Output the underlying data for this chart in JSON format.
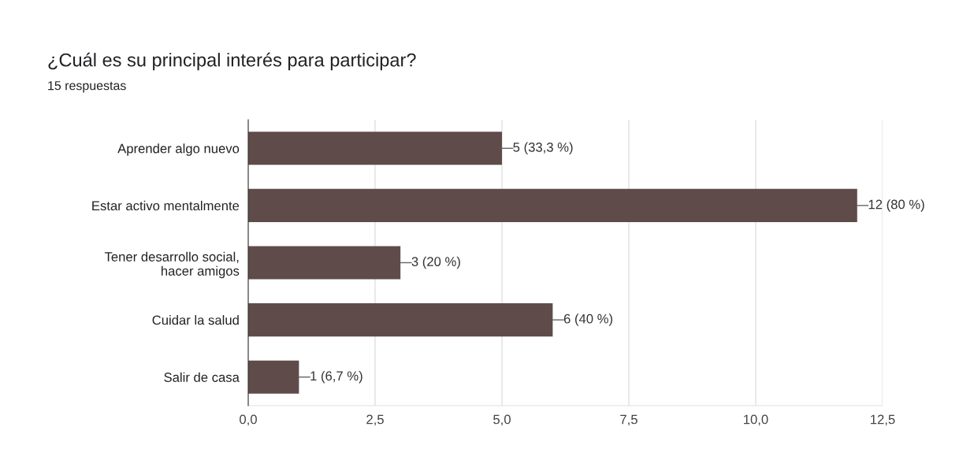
{
  "chart_data": {
    "type": "bar",
    "orientation": "horizontal",
    "title": "¿Cuál es su principal interés para participar?",
    "subtitle": "15 respuestas",
    "categories": [
      "Aprender algo nuevo",
      "Estar activo mentalmente",
      "Tener desarrollo social, hacer amigos",
      "Cuidar la salud",
      "Salir de casa"
    ],
    "values": [
      5,
      12,
      3,
      6,
      1
    ],
    "value_labels": [
      "5 (33,3 %)",
      "12 (80 %)",
      "3 (20 %)",
      "6 (40 %)",
      "1 (6,7 %)"
    ],
    "color": "#5f4c4a",
    "xlim": [
      0,
      12.5
    ],
    "xticks": [
      {
        "value": 0,
        "label": "0,0"
      },
      {
        "value": 2.5,
        "label": "2,5"
      },
      {
        "value": 5,
        "label": "5,0"
      },
      {
        "value": 7.5,
        "label": "7,5"
      },
      {
        "value": 10,
        "label": "10,0"
      },
      {
        "value": 12.5,
        "label": "12,5"
      }
    ],
    "grid": "x",
    "legend": false
  }
}
